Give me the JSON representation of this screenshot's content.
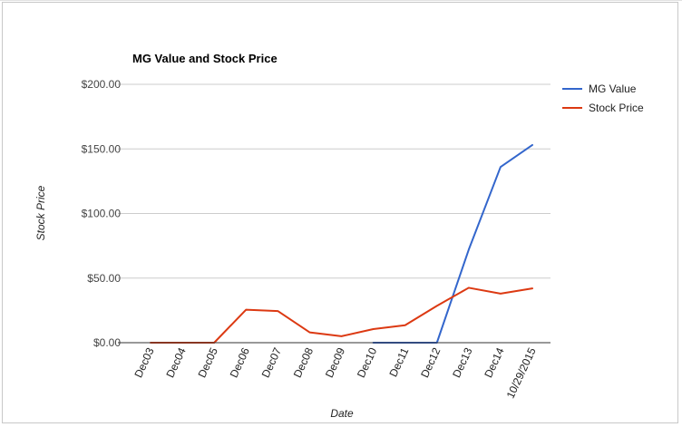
{
  "chart_data": {
    "type": "line",
    "title": "MG Value and Stock Price",
    "xlabel": "Date",
    "ylabel": "Stock Price",
    "categories": [
      "Dec03",
      "Dec04",
      "Dec05",
      "Dec06",
      "Dec07",
      "Dec08",
      "Dec09",
      "Dec10",
      "Dec11",
      "Dec12",
      "Dec13",
      "Dec14",
      "10/29/2015"
    ],
    "y_ticks": [
      "$0.00",
      "$50.00",
      "$100.00",
      "$150.00",
      "$200.00"
    ],
    "ylim": [
      0,
      200
    ],
    "grid": true,
    "legend_position": "right",
    "series": [
      {
        "name": "MG Value",
        "color": "#3366cc",
        "values": [
          null,
          null,
          null,
          null,
          null,
          null,
          null,
          0,
          0,
          0,
          72,
          136,
          153
        ]
      },
      {
        "name": "Stock Price",
        "color": "#dc3912",
        "values": [
          0,
          0,
          0,
          25.5,
          24.5,
          8,
          5,
          10.5,
          13.5,
          28.5,
          42.5,
          38,
          42
        ]
      }
    ]
  }
}
